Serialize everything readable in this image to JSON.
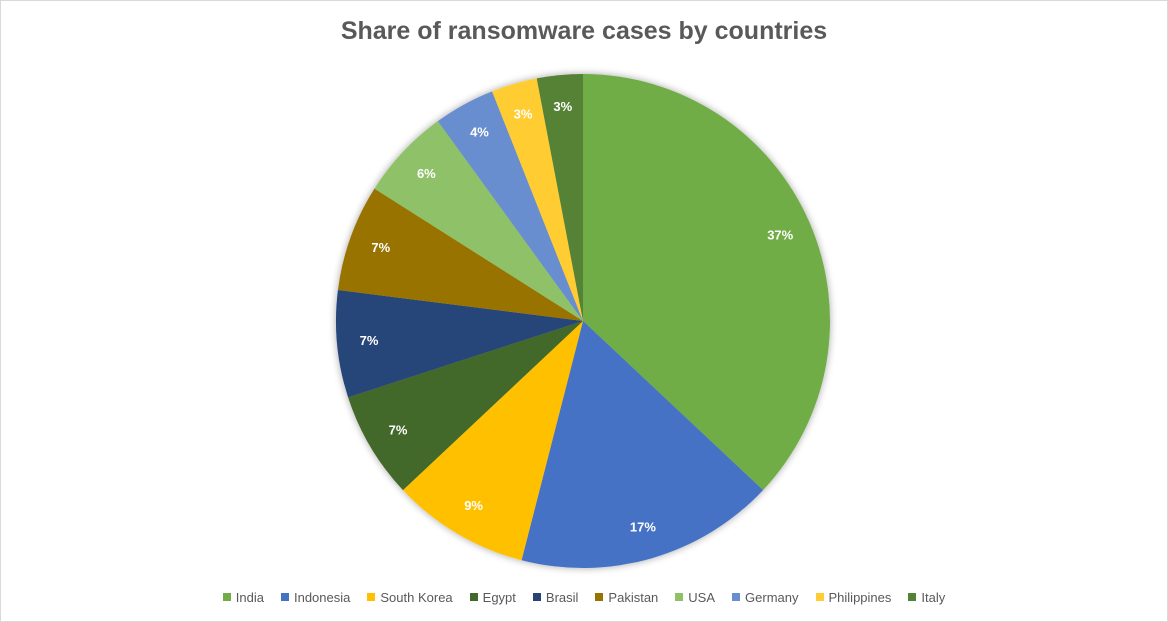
{
  "chart_data": {
    "type": "pie",
    "title": "Share of ransomware cases by countries",
    "categories": [
      "India",
      "Indonesia",
      "South Korea",
      "Egypt",
      "Brasil",
      "Pakistan",
      "USA",
      "Germany",
      "Philippines",
      "Italy"
    ],
    "values": [
      37,
      17,
      9,
      7,
      7,
      7,
      6,
      4,
      3,
      3
    ],
    "labels": [
      "37%",
      "17%",
      "9%",
      "7%",
      "7%",
      "7%",
      "6%",
      "4%",
      "3%",
      "3%"
    ],
    "unit": "percent",
    "colors": [
      "#70AD47",
      "#4472C4",
      "#FFC000",
      "#43682B",
      "#264478",
      "#997300",
      "#8FC167",
      "#698ED0",
      "#FFCD33",
      "#548235"
    ],
    "start": "top",
    "direction": "clockwise",
    "legend_position": "bottom"
  }
}
